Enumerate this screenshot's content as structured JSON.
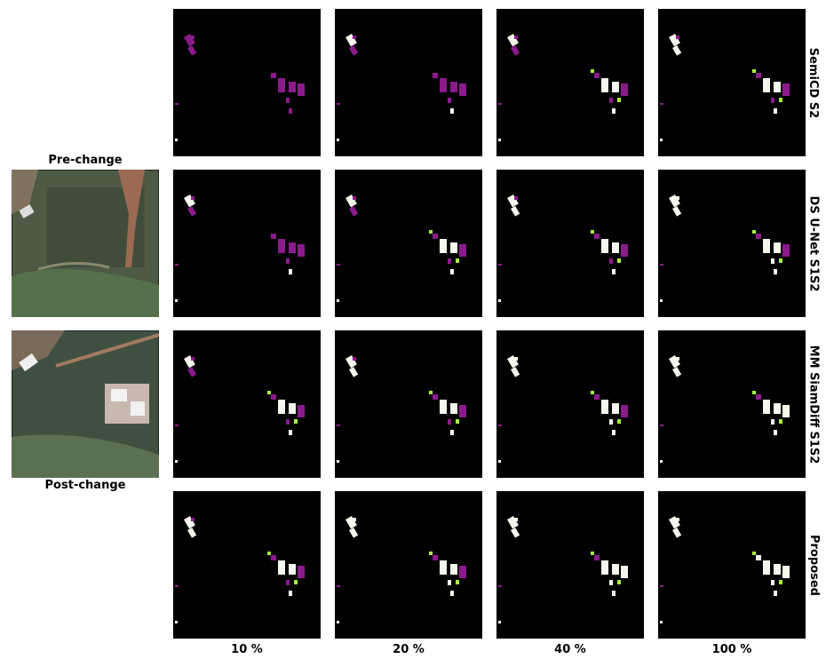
{
  "left_images": {
    "pre_label": "Pre-change",
    "post_label": "Post-change"
  },
  "rows": [
    "SemiCD S2",
    "DS U-Net S1S2",
    "MM SiamDiff S1S2",
    "Proposed"
  ],
  "columns": [
    "10 %",
    "20 %",
    "40 %",
    "100 %"
  ]
}
